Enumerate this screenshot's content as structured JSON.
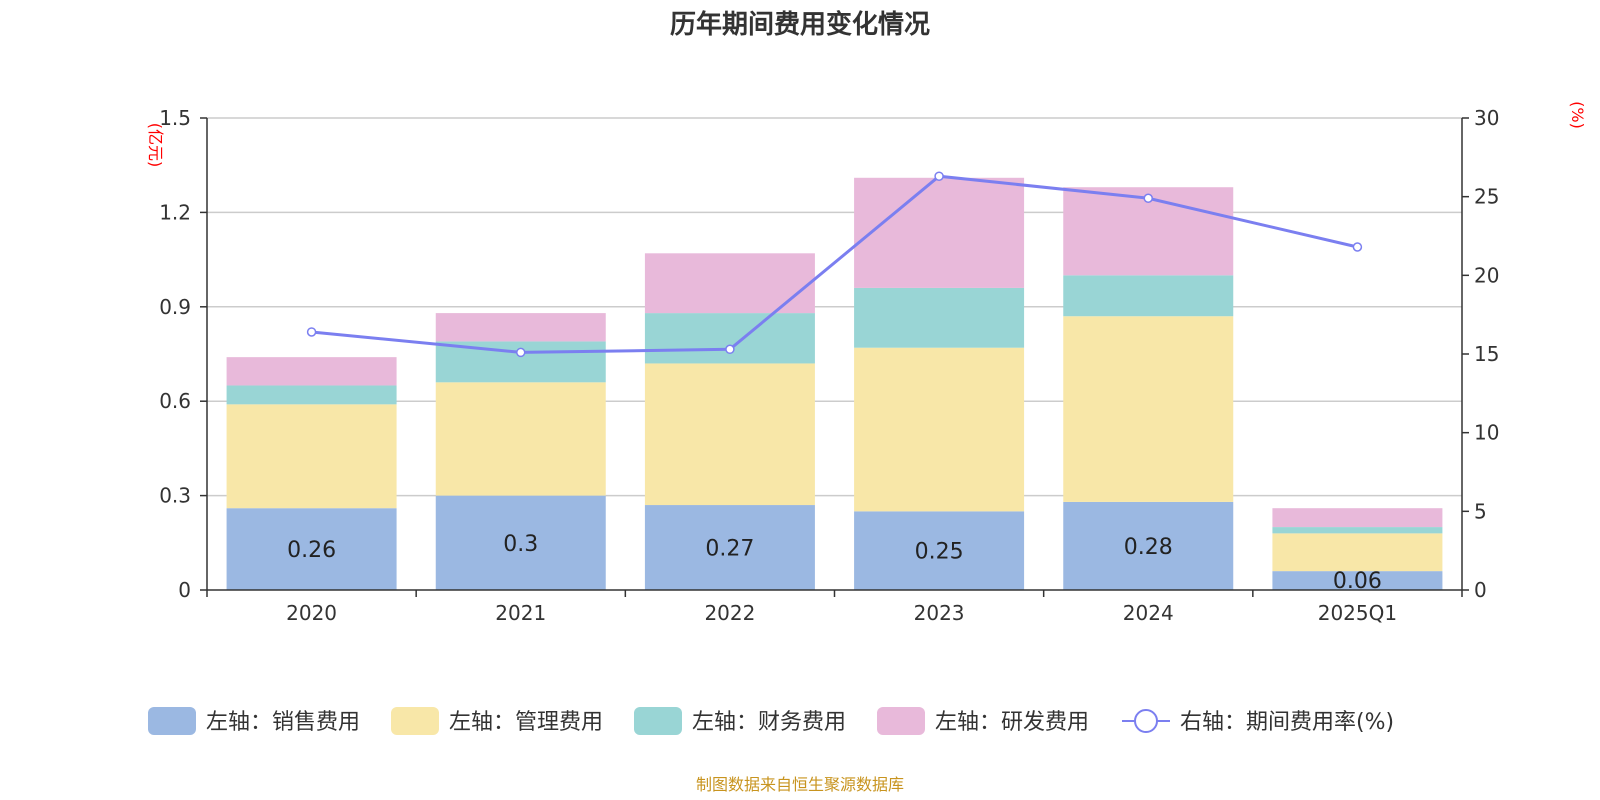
{
  "chart_data": {
    "type": "bar",
    "title": "历年期间费用变化情况",
    "categories": [
      "2020",
      "2021",
      "2022",
      "2023",
      "2024",
      "2025Q1"
    ],
    "left_axis": {
      "unit": "(亿元)",
      "ylim": [
        0,
        1.5
      ],
      "ticks": [
        "0",
        "0.3",
        "0.6",
        "0.9",
        "1.2",
        "1.5"
      ]
    },
    "right_axis": {
      "unit": "(%)",
      "ylim": [
        0,
        30
      ],
      "ticks": [
        "0",
        "5",
        "10",
        "15",
        "20",
        "25",
        "30"
      ]
    },
    "series": [
      {
        "name": "左轴：销售费用",
        "type": "bar",
        "color": "#9bb8e2",
        "values": [
          0.26,
          0.3,
          0.27,
          0.25,
          0.28,
          0.06
        ],
        "labels": [
          "0.26",
          "0.3",
          "0.27",
          "0.25",
          "0.28",
          "0.06"
        ]
      },
      {
        "name": "左轴：管理费用",
        "type": "bar",
        "color": "#f8e7a8",
        "values": [
          0.33,
          0.36,
          0.45,
          0.52,
          0.59,
          0.12
        ]
      },
      {
        "name": "左轴：财务费用",
        "type": "bar",
        "color": "#99d5d5",
        "values": [
          0.06,
          0.13,
          0.16,
          0.19,
          0.13,
          0.02
        ]
      },
      {
        "name": "左轴：研发费用",
        "type": "bar",
        "color": "#e8b9da",
        "values": [
          0.09,
          0.09,
          0.19,
          0.35,
          0.28,
          0.06
        ]
      },
      {
        "name": "右轴：期间费用率(%)",
        "type": "line",
        "color": "#7b7ff0",
        "values": [
          16.4,
          15.1,
          15.3,
          26.3,
          24.9,
          21.8
        ]
      }
    ],
    "grid": true,
    "legend_position": "bottom",
    "source": "制图数据来自恒生聚源数据库"
  }
}
